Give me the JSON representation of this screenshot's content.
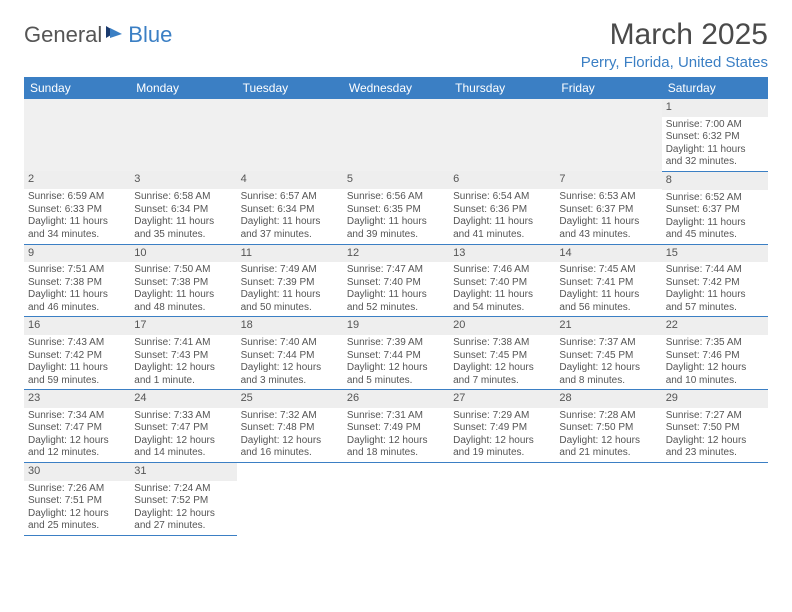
{
  "colors": {
    "accent": "#3b7fc4",
    "text": "#4a4a4a",
    "header_bg": "#3b7fc4",
    "header_fg": "#ffffff",
    "daynum_bg": "#eeeeee",
    "blank_bg": "#f0f0f0",
    "row_border": "#3b7fc4"
  },
  "logo": {
    "text1": "General",
    "text2": "Blue"
  },
  "header": {
    "title": "March 2025",
    "location": "Perry, Florida, United States"
  },
  "daysOfWeek": [
    "Sunday",
    "Monday",
    "Tuesday",
    "Wednesday",
    "Thursday",
    "Friday",
    "Saturday"
  ],
  "cells": [
    [
      null,
      null,
      null,
      null,
      null,
      null,
      {
        "n": "1",
        "sunrise": "7:00 AM",
        "sunset": "6:32 PM",
        "daylight": "11 hours and 32 minutes."
      }
    ],
    [
      {
        "n": "2",
        "sunrise": "6:59 AM",
        "sunset": "6:33 PM",
        "daylight": "11 hours and 34 minutes."
      },
      {
        "n": "3",
        "sunrise": "6:58 AM",
        "sunset": "6:34 PM",
        "daylight": "11 hours and 35 minutes."
      },
      {
        "n": "4",
        "sunrise": "6:57 AM",
        "sunset": "6:34 PM",
        "daylight": "11 hours and 37 minutes."
      },
      {
        "n": "5",
        "sunrise": "6:56 AM",
        "sunset": "6:35 PM",
        "daylight": "11 hours and 39 minutes."
      },
      {
        "n": "6",
        "sunrise": "6:54 AM",
        "sunset": "6:36 PM",
        "daylight": "11 hours and 41 minutes."
      },
      {
        "n": "7",
        "sunrise": "6:53 AM",
        "sunset": "6:37 PM",
        "daylight": "11 hours and 43 minutes."
      },
      {
        "n": "8",
        "sunrise": "6:52 AM",
        "sunset": "6:37 PM",
        "daylight": "11 hours and 45 minutes."
      }
    ],
    [
      {
        "n": "9",
        "sunrise": "7:51 AM",
        "sunset": "7:38 PM",
        "daylight": "11 hours and 46 minutes."
      },
      {
        "n": "10",
        "sunrise": "7:50 AM",
        "sunset": "7:38 PM",
        "daylight": "11 hours and 48 minutes."
      },
      {
        "n": "11",
        "sunrise": "7:49 AM",
        "sunset": "7:39 PM",
        "daylight": "11 hours and 50 minutes."
      },
      {
        "n": "12",
        "sunrise": "7:47 AM",
        "sunset": "7:40 PM",
        "daylight": "11 hours and 52 minutes."
      },
      {
        "n": "13",
        "sunrise": "7:46 AM",
        "sunset": "7:40 PM",
        "daylight": "11 hours and 54 minutes."
      },
      {
        "n": "14",
        "sunrise": "7:45 AM",
        "sunset": "7:41 PM",
        "daylight": "11 hours and 56 minutes."
      },
      {
        "n": "15",
        "sunrise": "7:44 AM",
        "sunset": "7:42 PM",
        "daylight": "11 hours and 57 minutes."
      }
    ],
    [
      {
        "n": "16",
        "sunrise": "7:43 AM",
        "sunset": "7:42 PM",
        "daylight": "11 hours and 59 minutes."
      },
      {
        "n": "17",
        "sunrise": "7:41 AM",
        "sunset": "7:43 PM",
        "daylight": "12 hours and 1 minute."
      },
      {
        "n": "18",
        "sunrise": "7:40 AM",
        "sunset": "7:44 PM",
        "daylight": "12 hours and 3 minutes."
      },
      {
        "n": "19",
        "sunrise": "7:39 AM",
        "sunset": "7:44 PM",
        "daylight": "12 hours and 5 minutes."
      },
      {
        "n": "20",
        "sunrise": "7:38 AM",
        "sunset": "7:45 PM",
        "daylight": "12 hours and 7 minutes."
      },
      {
        "n": "21",
        "sunrise": "7:37 AM",
        "sunset": "7:45 PM",
        "daylight": "12 hours and 8 minutes."
      },
      {
        "n": "22",
        "sunrise": "7:35 AM",
        "sunset": "7:46 PM",
        "daylight": "12 hours and 10 minutes."
      }
    ],
    [
      {
        "n": "23",
        "sunrise": "7:34 AM",
        "sunset": "7:47 PM",
        "daylight": "12 hours and 12 minutes."
      },
      {
        "n": "24",
        "sunrise": "7:33 AM",
        "sunset": "7:47 PM",
        "daylight": "12 hours and 14 minutes."
      },
      {
        "n": "25",
        "sunrise": "7:32 AM",
        "sunset": "7:48 PM",
        "daylight": "12 hours and 16 minutes."
      },
      {
        "n": "26",
        "sunrise": "7:31 AM",
        "sunset": "7:49 PM",
        "daylight": "12 hours and 18 minutes."
      },
      {
        "n": "27",
        "sunrise": "7:29 AM",
        "sunset": "7:49 PM",
        "daylight": "12 hours and 19 minutes."
      },
      {
        "n": "28",
        "sunrise": "7:28 AM",
        "sunset": "7:50 PM",
        "daylight": "12 hours and 21 minutes."
      },
      {
        "n": "29",
        "sunrise": "7:27 AM",
        "sunset": "7:50 PM",
        "daylight": "12 hours and 23 minutes."
      }
    ],
    [
      {
        "n": "30",
        "sunrise": "7:26 AM",
        "sunset": "7:51 PM",
        "daylight": "12 hours and 25 minutes."
      },
      {
        "n": "31",
        "sunrise": "7:24 AM",
        "sunset": "7:52 PM",
        "daylight": "12 hours and 27 minutes."
      },
      null,
      null,
      null,
      null,
      null
    ]
  ],
  "labels": {
    "sunrise": "Sunrise: ",
    "sunset": "Sunset: ",
    "daylight": "Daylight: "
  }
}
